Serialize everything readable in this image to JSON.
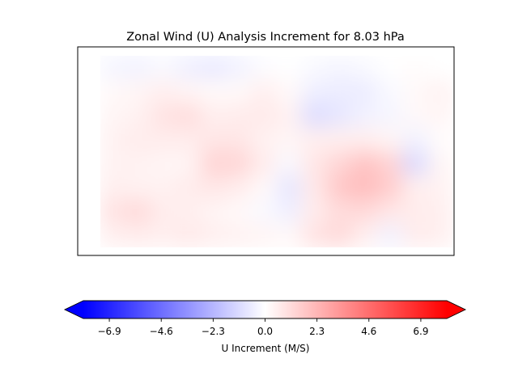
{
  "chart_data": {
    "type": "heatmap",
    "title": "Zonal Wind (U) Analysis Increment for 8.03 hPa",
    "xlabel": "",
    "ylabel": "",
    "grid": false,
    "colormap": "bwr",
    "colorbar": {
      "orientation": "horizontal",
      "label": "U Increment (M/S)",
      "vmin": -8.05,
      "vmax": 8.05,
      "extend": "both",
      "ticks": [
        -6.9,
        -4.6,
        -2.3,
        0.0,
        2.3,
        4.6,
        6.9
      ],
      "tick_labels": [
        "−6.9",
        "−4.6",
        "−2.3",
        "0.0",
        "2.3",
        "4.6",
        "6.9"
      ],
      "colors": {
        "low": "#0000ff",
        "mid": "#ffffff",
        "high": "#ff0000"
      }
    },
    "field": {
      "rows": 8,
      "cols": 14,
      "values": [
        [
          -0.3,
          -0.4,
          -0.2,
          -0.5,
          -0.7,
          -0.4,
          -0.1,
          0.0,
          -0.2,
          -0.3,
          -0.2,
          0.0,
          0.1,
          0.0
        ],
        [
          0.2,
          0.3,
          0.5,
          0.3,
          0.2,
          0.2,
          0.5,
          0.2,
          -0.5,
          -0.6,
          -0.6,
          -0.2,
          0.2,
          0.4
        ],
        [
          0.3,
          0.4,
          0.9,
          1.1,
          0.5,
          0.6,
          0.7,
          0.4,
          -1.1,
          -0.8,
          -0.4,
          -0.3,
          0.2,
          0.3
        ],
        [
          0.4,
          0.6,
          0.6,
          0.6,
          0.8,
          0.8,
          0.4,
          0.3,
          0.5,
          0.5,
          0.5,
          0.3,
          -0.4,
          0.1
        ],
        [
          0.4,
          0.4,
          0.3,
          0.3,
          1.4,
          1.3,
          0.6,
          -0.2,
          0.8,
          1.3,
          1.9,
          1.4,
          -1.2,
          0.3
        ],
        [
          0.5,
          0.4,
          0.4,
          0.6,
          0.8,
          0.6,
          0.2,
          -0.8,
          0.7,
          1.8,
          2.1,
          1.6,
          0.5,
          0.4
        ],
        [
          0.9,
          1.2,
          0.6,
          0.5,
          0.3,
          0.2,
          -0.2,
          -0.5,
          0.6,
          1.1,
          1.2,
          0.8,
          0.6,
          0.5
        ],
        [
          0.5,
          0.6,
          0.5,
          0.7,
          0.5,
          0.4,
          0.3,
          0.2,
          0.9,
          1.2,
          0.5,
          -0.4,
          0.6,
          0.5
        ]
      ]
    }
  }
}
